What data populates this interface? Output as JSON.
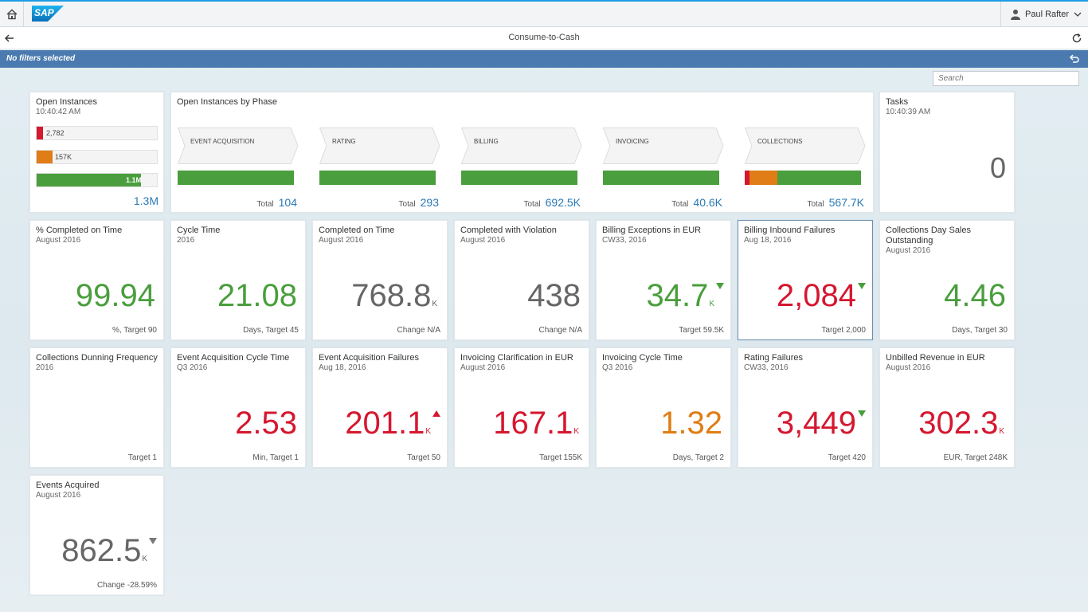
{
  "shell": {
    "logo": "SAP",
    "user_name": "Paul Rafter"
  },
  "subheader": {
    "title": "Consume-to-Cash"
  },
  "filterbar": {
    "text": "No filters selected"
  },
  "search": {
    "placeholder": "Search"
  },
  "open_instances": {
    "title": "Open Instances",
    "time": "10:40:42 AM",
    "bars": [
      {
        "label": "2,782",
        "color": "#d5172f",
        "fraction": 0.05
      },
      {
        "label": "157K",
        "color": "#e07d16",
        "fraction": 0.13
      },
      {
        "label": "1.1M",
        "color": "#4a9e3d",
        "fraction": 0.87
      }
    ],
    "total": "1.3M"
  },
  "phases": {
    "title": "Open Instances by Phase",
    "total_label": "Total",
    "items": [
      {
        "name": "EVENT ACQUISITION",
        "total": "104",
        "segments": [
          {
            "color": "#4a9e3d",
            "fraction": 1.0
          }
        ]
      },
      {
        "name": "RATING",
        "total": "293",
        "segments": [
          {
            "color": "#4a9e3d",
            "fraction": 1.0
          }
        ]
      },
      {
        "name": "BILLING",
        "total": "692.5K",
        "segments": [
          {
            "color": "#4a9e3d",
            "fraction": 1.0
          }
        ]
      },
      {
        "name": "INVOICING",
        "total": "40.6K",
        "segments": [
          {
            "color": "#4a9e3d",
            "fraction": 1.0
          }
        ]
      },
      {
        "name": "COLLECTIONS",
        "total": "567.7K",
        "segments": [
          {
            "color": "#d5172f",
            "fraction": 0.04
          },
          {
            "color": "#e07d16",
            "fraction": 0.24
          },
          {
            "color": "#4a9e3d",
            "fraction": 0.72
          }
        ]
      }
    ]
  },
  "tasks": {
    "title": "Tasks",
    "time": "10:40:39 AM",
    "value": "0"
  },
  "kpis": [
    {
      "title": "% Completed on Time",
      "sub": "August 2016",
      "value": "99.94",
      "unit": "",
      "color": "green",
      "arrow": "",
      "footer": "%, Target 90"
    },
    {
      "title": "Cycle Time",
      "sub": "2016",
      "value": "21.08",
      "unit": "",
      "color": "green",
      "arrow": "",
      "footer": "Days, Target 45"
    },
    {
      "title": "Completed on Time",
      "sub": "August 2016",
      "value": "768.8",
      "unit": "K",
      "color": "gray",
      "arrow": "",
      "footer": "Change N/A"
    },
    {
      "title": "Completed with Violation",
      "sub": "August 2016",
      "value": "438",
      "unit": "",
      "color": "gray",
      "arrow": "",
      "footer": "Change N/A"
    },
    {
      "title": "Billing Exceptions in EUR",
      "sub": "CW33, 2016",
      "value": "34.7",
      "unit": "K",
      "color": "green",
      "arrow": "down-green",
      "footer": "Target 59.5K"
    },
    {
      "title": "Billing Inbound Failures",
      "sub": "Aug 18, 2016",
      "value": "2,084",
      "unit": "",
      "color": "red",
      "arrow": "down-green",
      "footer": "Target 2,000"
    },
    {
      "title": "Collections Day Sales Outstanding",
      "sub": "August 2016",
      "value": "4.46",
      "unit": "",
      "color": "green",
      "arrow": "",
      "footer": "Days, Target 30"
    },
    {
      "title": "Collections Dunning Frequency",
      "sub": "2016",
      "value": "",
      "unit": "",
      "color": "gray",
      "arrow": "",
      "footer": "Target 1"
    },
    {
      "title": "Event Acquisition Cycle Time",
      "sub": "Q3 2016",
      "value": "2.53",
      "unit": "",
      "color": "red",
      "arrow": "",
      "footer": "Min, Target 1"
    },
    {
      "title": "Event Acquisition Failures",
      "sub": "Aug 18, 2016",
      "value": "201.1",
      "unit": "K",
      "color": "red",
      "arrow": "up-red",
      "footer": "Target 50"
    },
    {
      "title": "Invoicing Clarification in EUR",
      "sub": "August 2016",
      "value": "167.1",
      "unit": "K",
      "color": "red",
      "arrow": "",
      "footer": "Target 155K"
    },
    {
      "title": "Invoicing Cycle Time",
      "sub": "Q3 2016",
      "value": "1.32",
      "unit": "",
      "color": "orange",
      "arrow": "",
      "footer": "Days, Target 2"
    },
    {
      "title": "Rating Failures",
      "sub": "CW33, 2016",
      "value": "3,449",
      "unit": "",
      "color": "red",
      "arrow": "down-green",
      "footer": "Target 420"
    },
    {
      "title": "Unbilled Revenue in EUR",
      "sub": "August 2016",
      "value": "302.3",
      "unit": "K",
      "color": "red",
      "arrow": "",
      "footer": "EUR, Target 248K"
    },
    {
      "title": "Events Acquired",
      "sub": "August 2016",
      "value": "862.5",
      "unit": "K",
      "color": "gray",
      "arrow": "down-gray",
      "footer": "Change -28.59%"
    }
  ],
  "colors": {
    "accent": "#4a7aaf",
    "green": "#4a9e3d",
    "red": "#d5172f",
    "orange": "#e07d16",
    "blue_value": "#2a7ab5"
  }
}
